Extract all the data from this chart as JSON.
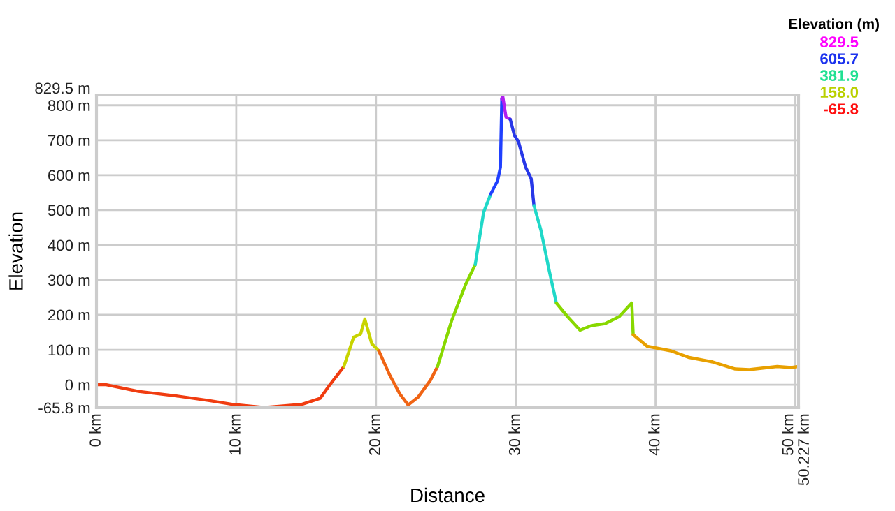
{
  "chart_data": {
    "type": "line",
    "xlabel": "Distance",
    "ylabel": "Elevation",
    "legend_title": "Elevation (m)",
    "annotations": [
      "829.5",
      "605.7",
      "381.9",
      "158.0",
      "-65.8"
    ],
    "series": [
      {
        "color": "#f03c10",
        "x": [
          0,
          0.7,
          3,
          5.7,
          8,
          9.7,
          12,
          14.7,
          16,
          16.7,
          17.7
        ],
        "values": [
          0,
          0,
          -19,
          -32,
          -45,
          -56,
          -65,
          -56,
          -39,
          0,
          52
        ]
      },
      {
        "color": "#c8d400",
        "x": [
          17.7,
          18.4,
          18.9,
          19.2,
          19.7,
          20.2
        ],
        "values": [
          52,
          136,
          145,
          188,
          117,
          97
        ]
      },
      {
        "color": "#f06414",
        "x": [
          20.2,
          21,
          21.7,
          22.3,
          23,
          23.9,
          24.4
        ],
        "values": [
          97,
          26,
          -26,
          -58,
          -36,
          13,
          52
        ]
      },
      {
        "color": "#88d800",
        "x": [
          24.4,
          25.4,
          26.4,
          27.1
        ],
        "values": [
          52,
          182,
          286,
          344
        ]
      },
      {
        "color": "#20d8c8",
        "x": [
          27.1,
          27.7,
          28.2
        ],
        "values": [
          344,
          494,
          545
        ]
      },
      {
        "color": "#2040ff",
        "x": [
          28.2,
          28.7,
          28.9,
          29.0
        ],
        "values": [
          545,
          584,
          623,
          818
        ]
      },
      {
        "color": "#b020f0",
        "x": [
          29.0,
          29.05,
          29.3,
          29.6
        ],
        "values": [
          818,
          829.5,
          766,
          760
        ]
      },
      {
        "color": "#2838e8",
        "x": [
          29.6,
          29.9,
          30.2,
          30.7,
          31.1,
          31.3
        ],
        "values": [
          760,
          714,
          695,
          623,
          590,
          513
        ]
      },
      {
        "color": "#20d8c8",
        "x": [
          31.3,
          31.8,
          32.4,
          32.9
        ],
        "values": [
          513,
          442,
          325,
          234
        ]
      },
      {
        "color": "#88d800",
        "x": [
          32.9,
          33.7,
          34.6,
          35.4,
          36.4,
          37.4,
          38.3,
          38.4
        ],
        "values": [
          234,
          195,
          156,
          169,
          175,
          195,
          234,
          143
        ]
      },
      {
        "color": "#e8a000",
        "x": [
          38.4,
          39.4,
          41.1,
          42.4,
          44.1,
          45.7,
          46.7,
          48.7,
          49.7,
          50.227
        ],
        "values": [
          143,
          110,
          97,
          78,
          65,
          45,
          43,
          52,
          49,
          52
        ]
      }
    ],
    "xlim": [
      0,
      50.227
    ],
    "xticks": [
      {
        "value": 0,
        "label": "0 km"
      },
      {
        "value": 10,
        "label": "10 km"
      },
      {
        "value": 20,
        "label": "20 km"
      },
      {
        "value": 30,
        "label": "30 km"
      },
      {
        "value": 40,
        "label": "40 km"
      },
      {
        "value": 50,
        "label": "50 km"
      },
      {
        "value": 50.227,
        "label": "50.227 km"
      }
    ],
    "ylim": [
      -65.8,
      829.5
    ],
    "yticks": [
      {
        "value": -65.8,
        "label": "-65.8 m"
      },
      {
        "value": 0,
        "label": "0 m"
      },
      {
        "value": 100,
        "label": "100 m"
      },
      {
        "value": 200,
        "label": "200 m"
      },
      {
        "value": 300,
        "label": "300 m"
      },
      {
        "value": 400,
        "label": "400 m"
      },
      {
        "value": 500,
        "label": "500 m"
      },
      {
        "value": 600,
        "label": "600 m"
      },
      {
        "value": 700,
        "label": "700 m"
      },
      {
        "value": 800,
        "label": "800 m"
      },
      {
        "value": 829.5,
        "label": "829.5 m"
      }
    ],
    "grid": true
  }
}
